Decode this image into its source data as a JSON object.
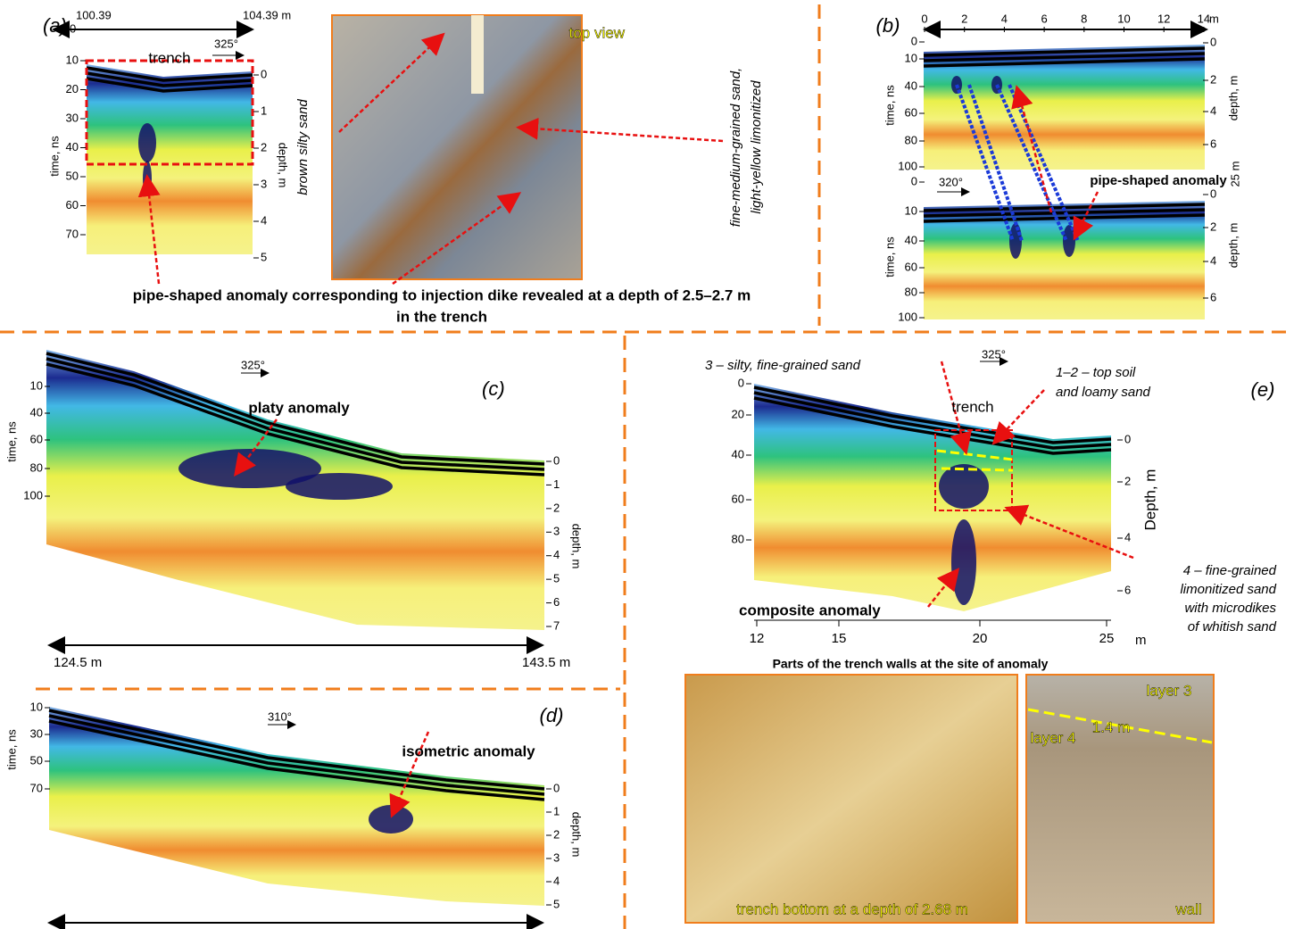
{
  "figure": {
    "a": {
      "label": "(a)",
      "axis_start": 100.39,
      "axis_zero": 0,
      "axis_end": "104.39 m",
      "trench": "trench",
      "azimuth": "325°",
      "time_title": "time, ns",
      "time_ticks": [
        10,
        20,
        30,
        40,
        50,
        60,
        70
      ],
      "depth_title": "depth, m",
      "depth_ticks": [
        0,
        1,
        2,
        3,
        4,
        5
      ],
      "side_text": "brown silty sand",
      "photo_label": "top view",
      "sand_text": [
        "fine-medium-grained sand,",
        "light-yellow limonitized"
      ],
      "caption": [
        "pipe-shaped anomaly corresponding to injection dike revealed at a depth of 2.5–2.7 m",
        "in the trench"
      ]
    },
    "b": {
      "label": "(b)",
      "x_ticks": [
        0,
        2,
        4,
        6,
        8,
        10,
        12,
        14
      ],
      "x_unit": "m",
      "time_title": "time, ns",
      "depth_title": "depth, m",
      "upper_time_ticks": [
        0,
        10,
        40,
        60,
        80,
        100
      ],
      "upper_depth_ticks": [
        0,
        2,
        4,
        6
      ],
      "lower_time_ticks": [
        0,
        10,
        40,
        60,
        80,
        100
      ],
      "lower_depth_ticks": [
        0,
        2,
        4,
        6
      ],
      "gap_label": "25 m",
      "azimuth": "320°",
      "anomaly": "pipe-shaped anomaly"
    },
    "c": {
      "label": "(c)",
      "azimuth": "325°",
      "anomaly": "platy anomaly",
      "time_title": "time, ns",
      "time_ticks": [
        10,
        40,
        60,
        80,
        100
      ],
      "depth_title": "depth, m",
      "depth_ticks": [
        0,
        1,
        2,
        3,
        4,
        5,
        6,
        7
      ],
      "axis_start": "124.5 m",
      "axis_end": "143.5 m"
    },
    "d": {
      "label": "(d)",
      "azimuth": "310°",
      "anomaly": "isometric anomaly",
      "time_title": "time, ns",
      "time_ticks": [
        10,
        30,
        50,
        70
      ],
      "depth_title": "depth, m",
      "depth_ticks": [
        0,
        1,
        2,
        3,
        4,
        5
      ]
    },
    "e": {
      "label": "(e)",
      "azimuth": "325°",
      "trench": "trench",
      "time_ticks": [
        0,
        20,
        40,
        60,
        80
      ],
      "depth_title": "Depth, m",
      "depth_ticks": [
        0,
        2,
        4,
        6
      ],
      "x_ticks": [
        12,
        15,
        20,
        25
      ],
      "x_unit": "m",
      "layer3": "3 – silty, fine-grained sand",
      "layer12": [
        "1–2 – top soil",
        "and  loamy sand"
      ],
      "layer4": [
        "4 – fine-grained",
        "limonitized sand",
        "with microdikes",
        "of whitish sand"
      ],
      "anomaly": "composite anomaly",
      "photos_title": "Parts of the trench walls at the site of anomaly",
      "photo1_label": "trench bottom at a depth of 2.68 m",
      "layer3_label": "layer 3",
      "layer4_label": "layer 4",
      "thickness": "1.4 m",
      "wall_label": "wall"
    }
  }
}
